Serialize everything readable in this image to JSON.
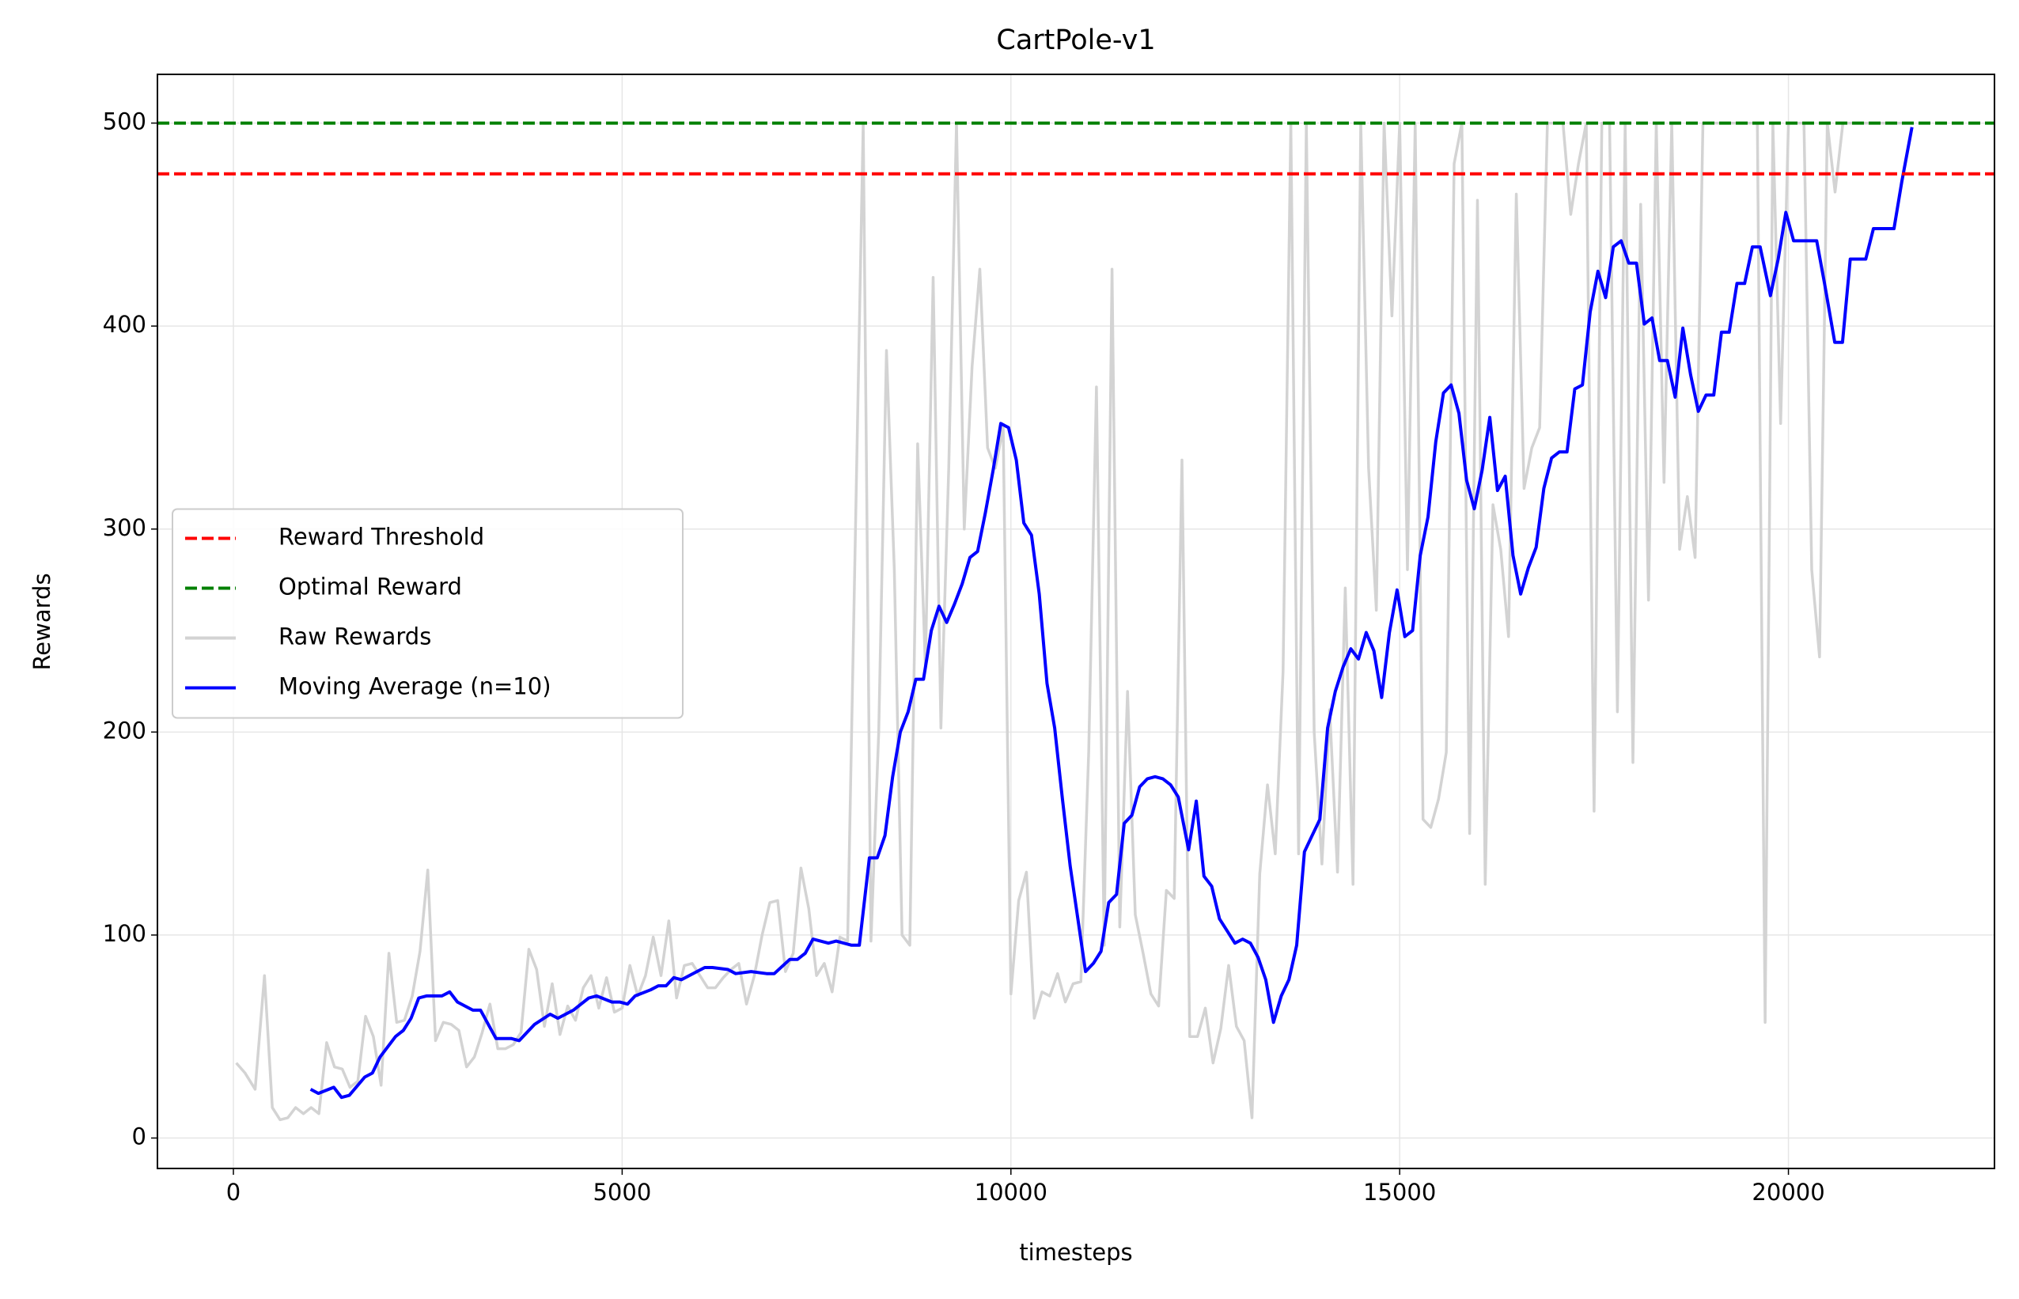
{
  "chart_data": {
    "type": "line",
    "title": "CartPole-v1",
    "xlabel": "timesteps",
    "ylabel": "Rewards",
    "xlim": [
      -977,
      22650
    ],
    "ylim": [
      -15,
      524
    ],
    "xticks": [
      0,
      5000,
      10000,
      15000,
      20000
    ],
    "yticks": [
      0,
      100,
      200,
      300,
      400,
      500
    ],
    "grid": true,
    "legend_loc": "center left",
    "hlines": [
      {
        "name": "Reward Threshold",
        "color": "#ff0000",
        "value": 475
      },
      {
        "name": "Optimal Reward",
        "color": "#008000",
        "value": 500
      }
    ],
    "series": [
      {
        "name": "Raw Rewards",
        "color": "#d3d3d3",
        "x": [
          36,
          150,
          280,
          400,
          500,
          600,
          700,
          800,
          900,
          1000,
          1100,
          1200,
          1300,
          1400,
          1500,
          1600,
          1700,
          1800,
          1900,
          2000,
          2100,
          2200,
          2300,
          2400,
          2500,
          2600,
          2700,
          2800,
          2900,
          3000,
          3100,
          3200,
          3300,
          3400,
          3500,
          3600,
          3700,
          3800,
          3900,
          4000,
          4100,
          4200,
          4300,
          4400,
          4500,
          4600,
          4700,
          4800,
          4900,
          5000,
          5100,
          5200,
          5300,
          5400,
          5500,
          5600,
          5700,
          5800,
          5900,
          6000,
          6100,
          6200,
          6300,
          6400,
          6500,
          6600,
          6700,
          6800,
          6900,
          7000,
          7100,
          7200,
          7300,
          7400,
          7500,
          7600,
          7700,
          7800,
          7900,
          8100,
          8200,
          8300,
          8400,
          8500,
          8600,
          8700,
          8800,
          8900,
          9000,
          9100,
          9200,
          9300,
          9400,
          9500,
          9600,
          9700,
          9800,
          9900,
          10000,
          10100,
          10200,
          10300,
          10400,
          10500,
          10600,
          10700,
          10800,
          10900,
          11000,
          11100,
          11200,
          11300,
          11400,
          11500,
          11600,
          11700,
          11800,
          11900,
          12000,
          12100,
          12200,
          12300,
          12400,
          12500,
          12600,
          12700,
          12800,
          12900,
          13000,
          13100,
          13200,
          13300,
          13400,
          13500,
          13600,
          13700,
          13800,
          13900,
          14000,
          14100,
          14200,
          14300,
          14400,
          14500,
          14600,
          14700,
          14800,
          14900,
          15000,
          15100,
          15200,
          15300,
          15400,
          15500,
          15600,
          15700,
          15800,
          15900,
          16000,
          16100,
          16200,
          16300,
          16400,
          16500,
          16600,
          16700,
          16800,
          16900,
          17000,
          17100,
          17200,
          17300,
          17400,
          17500,
          17600,
          17700,
          17800,
          17900,
          18000,
          18100,
          18200,
          18300,
          18400,
          18500,
          18600,
          18700,
          18800,
          18900,
          19000,
          19100,
          19200,
          19300,
          19400,
          19500,
          19600,
          19700,
          19800,
          19900,
          20000,
          20100,
          20200,
          20300,
          20400,
          20500,
          20600,
          20700,
          20800,
          20900,
          21000,
          21100,
          21200,
          21300,
          21400,
          21500,
          21600
        ],
        "values": [
          37,
          32,
          24,
          80,
          15,
          9,
          10,
          15,
          12,
          15,
          12,
          47,
          35,
          34,
          25,
          28,
          60,
          50,
          26,
          91,
          57,
          58,
          70,
          92,
          132,
          48,
          57,
          56,
          53,
          35,
          40,
          52,
          66,
          44,
          44,
          46,
          52,
          93,
          83,
          55,
          76,
          51,
          65,
          58,
          74,
          80,
          64,
          79,
          62,
          64,
          85,
          70,
          80,
          99,
          80,
          107,
          69,
          85,
          86,
          80,
          74,
          74,
          79,
          83,
          86,
          66,
          80,
          100,
          116,
          117,
          82,
          91,
          133,
          113,
          80,
          86,
          72,
          99,
          97,
          500,
          97,
          200,
          388,
          280,
          100,
          95,
          342,
          232,
          424,
          202,
          330,
          500,
          300,
          380,
          428,
          340,
          330,
          350,
          71,
          117,
          131,
          59,
          72,
          70,
          81,
          67,
          76,
          77,
          190,
          370,
          95,
          428,
          104,
          220,
          110,
          91,
          71,
          65,
          122,
          118,
          334,
          50,
          50,
          64,
          37,
          54,
          85,
          55,
          48,
          10,
          130,
          174,
          140,
          230,
          500,
          140,
          500,
          200,
          135,
          211,
          131,
          271,
          125,
          500,
          330,
          260,
          500,
          405,
          500,
          280,
          500,
          157,
          153,
          167,
          190,
          480,
          500,
          150,
          462,
          125,
          312,
          290,
          247,
          465,
          320,
          340,
          350,
          500,
          500,
          500,
          455,
          480,
          500,
          161,
          500,
          500,
          210,
          500,
          185,
          460,
          265,
          500,
          323,
          500,
          290,
          316,
          286,
          500,
          500,
          500,
          500,
          500,
          500,
          500,
          500,
          57,
          500,
          352,
          500,
          500,
          500,
          280,
          237,
          500,
          466,
          500,
          500,
          500,
          500,
          500,
          500,
          500,
          500,
          500,
          500
        ]
      },
      {
        "name": "Moving Average (n=10)",
        "color": "#0000ff",
        "x": [
          993,
          1093,
          1291,
          1391,
          1490,
          1689,
          1788,
          1887,
          2086,
          2185,
          2285,
          2384,
          2484,
          2682,
          2782,
          2881,
          3080,
          3179,
          3378,
          3577,
          3676,
          3875,
          4074,
          4173,
          4372,
          4571,
          4670,
          4869,
          4968,
          5068,
          5167,
          5366,
          5465,
          5565,
          5664,
          5763,
          5962,
          6062,
          6161,
          6360,
          6460,
          6659,
          6858,
          6957,
          7156,
          7255,
          7355,
          7454,
          7653,
          7752,
          7951,
          8050,
          8180,
          8280,
          8380,
          8479,
          8578,
          8678,
          8777,
          8876,
          8976,
          9075,
          9174,
          9274,
          9373,
          9473,
          9572,
          9671,
          9771,
          9870,
          9970,
          10069,
          10166,
          10265,
          10364,
          10464,
          10563,
          10662,
          10762,
          10861,
          10960,
          11060,
          11159,
          11258,
          11358,
          11457,
          11556,
          11656,
          11755,
          11854,
          11954,
          12053,
          12152,
          12285,
          12384,
          12483,
          12583,
          12682,
          12782,
          12881,
          12980,
          13080,
          13179,
          13278,
          13377,
          13477,
          13576,
          13675,
          13775,
          13874,
          13974,
          14073,
          14172,
          14272,
          14371,
          14470,
          14570,
          14669,
          14768,
          14868,
          14967,
          15066,
          15166,
          15265,
          15364,
          15464,
          15563,
          15662,
          15762,
          15861,
          15960,
          16060,
          16159,
          16258,
          16358,
          16457,
          16556,
          16656,
          16755,
          16854,
          16954,
          17053,
          17152,
          17252,
          17351,
          17450,
          17550,
          17649,
          17748,
          17848,
          17947,
          18046,
          18146,
          18245,
          18344,
          18444,
          18543,
          18642,
          18742,
          18841,
          18940,
          19040,
          19139,
          19238,
          19338,
          19437,
          19536,
          19636,
          19768,
          19868,
          19967,
          20066,
          20166,
          20364,
          20464,
          20596,
          20695,
          20795,
          20994,
          21093,
          21358,
          21457,
          21589
        ],
        "values": [
          24,
          22,
          25,
          20,
          21,
          30,
          32,
          40,
          50,
          53,
          59,
          69,
          70,
          70,
          72,
          67,
          63,
          63,
          49,
          49,
          48,
          56,
          61,
          59,
          63,
          69,
          70,
          67,
          67,
          66,
          70,
          73,
          75,
          75,
          79,
          78,
          82,
          84,
          84,
          83,
          81,
          82,
          81,
          81,
          88,
          88,
          91,
          98,
          96,
          97,
          95,
          95,
          138,
          138,
          149,
          178,
          200,
          210,
          226,
          226,
          250,
          262,
          254,
          263,
          273,
          286,
          289,
          308,
          329,
          352,
          350,
          334,
          303,
          297,
          268,
          224,
          202,
          167,
          134,
          108,
          82,
          86,
          92,
          116,
          120,
          155,
          159,
          173,
          177,
          178,
          177,
          174,
          168,
          142,
          166,
          129,
          124,
          108,
          102,
          96,
          98,
          96,
          89,
          78,
          57,
          70,
          78,
          95,
          141,
          149,
          157,
          202,
          220,
          232,
          241,
          236,
          249,
          240,
          217,
          249,
          270,
          247,
          250,
          287,
          306,
          343,
          367,
          371,
          357,
          324,
          310,
          329,
          355,
          319,
          326,
          287,
          268,
          281,
          291,
          320,
          335,
          338,
          338,
          369,
          371,
          407,
          427,
          414,
          439,
          442,
          431,
          431,
          401,
          404,
          383,
          383,
          365,
          399,
          376,
          358,
          366,
          366,
          397,
          397,
          421,
          421,
          439,
          439,
          415,
          433,
          456,
          442,
          442,
          442,
          421,
          392,
          392,
          433,
          433,
          448,
          448,
          471,
          498
        ]
      }
    ]
  }
}
